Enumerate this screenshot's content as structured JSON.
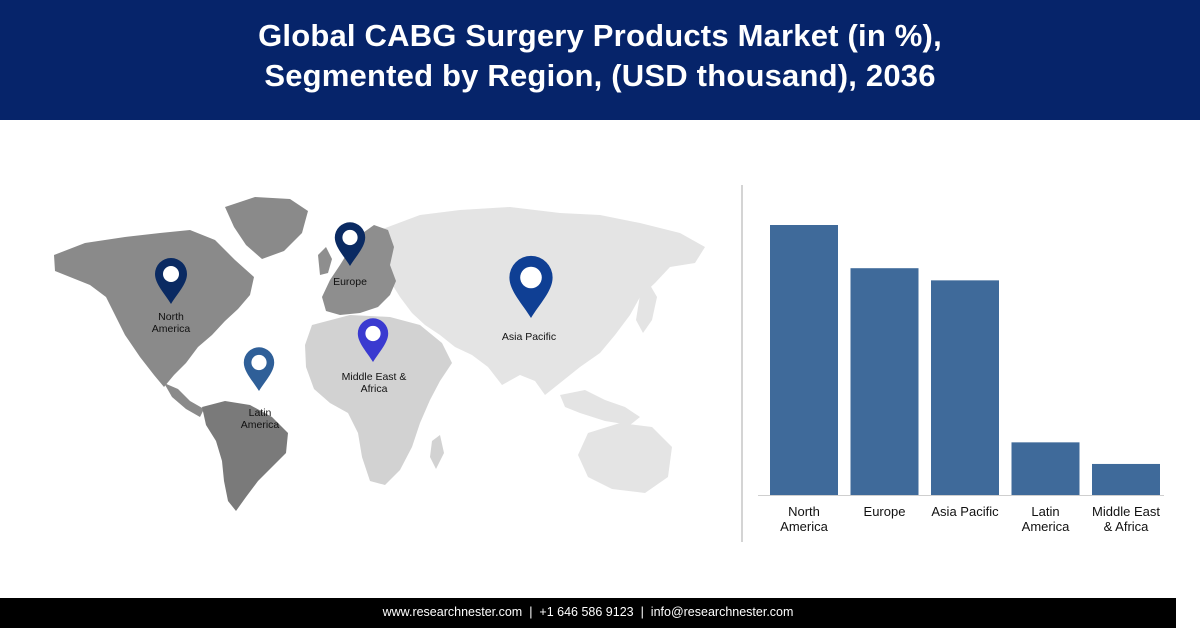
{
  "header": {
    "title_line1": "Global CABG Surgery Products Market (in %),",
    "title_line2": "Segmented by Region, (USD thousand), 2036"
  },
  "map": {
    "markers": [
      {
        "label_lines": [
          "North",
          "America"
        ],
        "color": "#0a2a62"
      },
      {
        "label_lines": [
          "Europe"
        ],
        "color": "#0a2a62"
      },
      {
        "label_lines": [
          "Asia Pacific"
        ],
        "color": "#0f3f94"
      },
      {
        "label_lines": [
          "Middle East &",
          "Africa"
        ],
        "color": "#3a3ad0"
      },
      {
        "label_lines": [
          "Latin",
          "America"
        ],
        "color": "#2f5f98"
      }
    ]
  },
  "chart_data": {
    "type": "bar",
    "categories": [
      "North America",
      "Europe",
      "Asia Pacific",
      "Latin America",
      "Middle East & Africa"
    ],
    "category_label_lines": [
      [
        "North",
        "America"
      ],
      [
        "Europe"
      ],
      [
        "Asia Pacific"
      ],
      [
        "Latin",
        "America"
      ],
      [
        "Middle East",
        "& Africa"
      ]
    ],
    "values": [
      100,
      84,
      79.5,
      19.5,
      11.5
    ],
    "ylim": [
      0,
      100
    ],
    "bar_color": "#3f6a9a",
    "grid": false,
    "title": "",
    "xlabel": "",
    "ylabel": ""
  },
  "footer": {
    "website": "www.researchnester.com",
    "separator": "|",
    "phone": "+1 646 586 9123",
    "email": "info@researchnester.com"
  }
}
